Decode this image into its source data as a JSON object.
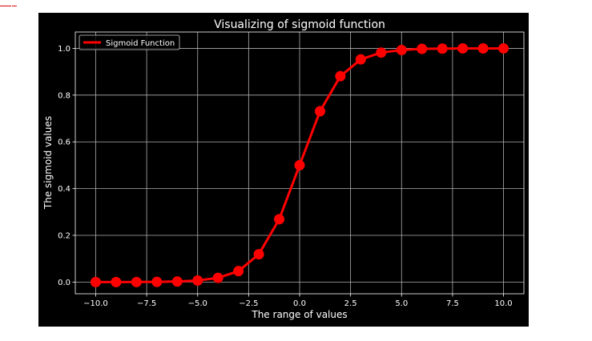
{
  "colors": {
    "figure_background": "#000000",
    "axes_background": "#000000",
    "foreground": "#ffffff",
    "grid": "#b0b0b0",
    "series": "#ff0000"
  },
  "chart_data": {
    "type": "line",
    "title": "Visualizing of sigmoid function",
    "xlabel": "The range of values",
    "ylabel": "The sigmoid values",
    "xlim": [
      -11.0,
      11.0
    ],
    "ylim": [
      -0.05,
      1.07
    ],
    "xticks": [
      -10.0,
      -7.5,
      -5.0,
      -2.5,
      0.0,
      2.5,
      5.0,
      7.5,
      10.0
    ],
    "xtick_labels": [
      "−10.0",
      "−7.5",
      "−5.0",
      "−2.5",
      "0.0",
      "2.5",
      "5.0",
      "7.5",
      "10.0"
    ],
    "yticks": [
      0.0,
      0.2,
      0.4,
      0.6,
      0.8,
      1.0
    ],
    "ytick_labels": [
      "0.0",
      "0.2",
      "0.4",
      "0.6",
      "0.8",
      "1.0"
    ],
    "grid": true,
    "legend_position": "top-left",
    "x": [
      -10,
      -9,
      -8,
      -7,
      -6,
      -5,
      -4,
      -3,
      -2,
      -1,
      0,
      1,
      2,
      3,
      4,
      5,
      6,
      7,
      8,
      9,
      10
    ],
    "series": [
      {
        "name": "Sigmoid Function",
        "color": "#ff0000",
        "marker": "circle",
        "values": [
          0.0,
          0.0001,
          0.0003,
          0.0009,
          0.0025,
          0.0067,
          0.018,
          0.047,
          0.119,
          0.269,
          0.5,
          0.731,
          0.881,
          0.953,
          0.982,
          0.993,
          0.998,
          0.999,
          1.0,
          1.0,
          1.0
        ]
      }
    ]
  }
}
